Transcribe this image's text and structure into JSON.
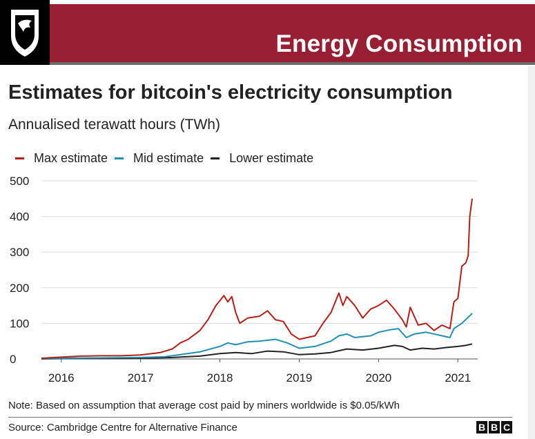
{
  "banner": {
    "title": "Energy Consumption",
    "band_color": "#981e32",
    "logo_icon": "cougar-shield-icon"
  },
  "chart_data": {
    "type": "line",
    "title": "Estimates for bitcoin's electricity consumption",
    "subtitle": "Annualised terawatt hours (TWh)",
    "xlabel": "",
    "ylabel": "",
    "xlim": [
      2015.75,
      2021.25
    ],
    "ylim": [
      0,
      500
    ],
    "x_ticks": [
      "2016",
      "2017",
      "2018",
      "2019",
      "2020",
      "2021"
    ],
    "y_ticks": [
      "500",
      "400",
      "300",
      "200",
      "100",
      "0"
    ],
    "grid": true,
    "legend_position": "top-left",
    "series": [
      {
        "name": "Max estimate",
        "color": "#b61e15",
        "points": [
          [
            2015.75,
            2
          ],
          [
            2016.0,
            5
          ],
          [
            2016.25,
            8
          ],
          [
            2016.5,
            9
          ],
          [
            2016.75,
            9
          ],
          [
            2017.0,
            11
          ],
          [
            2017.25,
            18
          ],
          [
            2017.4,
            28
          ],
          [
            2017.5,
            45
          ],
          [
            2017.6,
            55
          ],
          [
            2017.75,
            80
          ],
          [
            2017.85,
            110
          ],
          [
            2017.95,
            150
          ],
          [
            2018.05,
            178
          ],
          [
            2018.1,
            160
          ],
          [
            2018.15,
            175
          ],
          [
            2018.2,
            130
          ],
          [
            2018.25,
            100
          ],
          [
            2018.35,
            115
          ],
          [
            2018.5,
            120
          ],
          [
            2018.6,
            135
          ],
          [
            2018.7,
            110
          ],
          [
            2018.8,
            105
          ],
          [
            2018.9,
            70
          ],
          [
            2019.0,
            55
          ],
          [
            2019.1,
            60
          ],
          [
            2019.2,
            65
          ],
          [
            2019.3,
            100
          ],
          [
            2019.4,
            130
          ],
          [
            2019.5,
            185
          ],
          [
            2019.55,
            150
          ],
          [
            2019.6,
            175
          ],
          [
            2019.7,
            150
          ],
          [
            2019.8,
            115
          ],
          [
            2019.9,
            140
          ],
          [
            2020.0,
            150
          ],
          [
            2020.1,
            165
          ],
          [
            2020.2,
            140
          ],
          [
            2020.3,
            110
          ],
          [
            2020.35,
            90
          ],
          [
            2020.4,
            145
          ],
          [
            2020.5,
            95
          ],
          [
            2020.6,
            100
          ],
          [
            2020.7,
            80
          ],
          [
            2020.8,
            95
          ],
          [
            2020.9,
            85
          ],
          [
            2020.95,
            160
          ],
          [
            2021.0,
            170
          ],
          [
            2021.05,
            260
          ],
          [
            2021.1,
            270
          ],
          [
            2021.13,
            290
          ],
          [
            2021.15,
            400
          ],
          [
            2021.18,
            450
          ]
        ]
      },
      {
        "name": "Mid estimate",
        "color": "#1e8fb5",
        "points": [
          [
            2015.75,
            1
          ],
          [
            2016.0,
            2
          ],
          [
            2016.5,
            3
          ],
          [
            2017.0,
            4
          ],
          [
            2017.3,
            6
          ],
          [
            2017.5,
            12
          ],
          [
            2017.75,
            20
          ],
          [
            2018.0,
            35
          ],
          [
            2018.1,
            45
          ],
          [
            2018.2,
            40
          ],
          [
            2018.35,
            48
          ],
          [
            2018.5,
            50
          ],
          [
            2018.7,
            55
          ],
          [
            2018.85,
            45
          ],
          [
            2019.0,
            30
          ],
          [
            2019.2,
            35
          ],
          [
            2019.4,
            50
          ],
          [
            2019.5,
            65
          ],
          [
            2019.6,
            70
          ],
          [
            2019.7,
            60
          ],
          [
            2019.9,
            65
          ],
          [
            2020.0,
            75
          ],
          [
            2020.15,
            82
          ],
          [
            2020.25,
            85
          ],
          [
            2020.35,
            60
          ],
          [
            2020.45,
            70
          ],
          [
            2020.6,
            75
          ],
          [
            2020.8,
            65
          ],
          [
            2020.9,
            60
          ],
          [
            2020.95,
            85
          ],
          [
            2021.05,
            100
          ],
          [
            2021.12,
            115
          ],
          [
            2021.18,
            128
          ]
        ]
      },
      {
        "name": "Lower estimate",
        "color": "#222222",
        "points": [
          [
            2015.75,
            0
          ],
          [
            2016.0,
            1
          ],
          [
            2016.5,
            1
          ],
          [
            2017.0,
            2
          ],
          [
            2017.4,
            4
          ],
          [
            2017.75,
            8
          ],
          [
            2018.0,
            15
          ],
          [
            2018.2,
            18
          ],
          [
            2018.4,
            15
          ],
          [
            2018.6,
            22
          ],
          [
            2018.8,
            20
          ],
          [
            2019.0,
            12
          ],
          [
            2019.2,
            14
          ],
          [
            2019.4,
            18
          ],
          [
            2019.6,
            28
          ],
          [
            2019.8,
            25
          ],
          [
            2020.0,
            30
          ],
          [
            2020.2,
            38
          ],
          [
            2020.3,
            35
          ],
          [
            2020.4,
            25
          ],
          [
            2020.55,
            30
          ],
          [
            2020.7,
            28
          ],
          [
            2020.85,
            32
          ],
          [
            2021.0,
            35
          ],
          [
            2021.1,
            38
          ],
          [
            2021.18,
            42
          ]
        ]
      }
    ]
  },
  "note": "Note: Based on assumption that average cost paid by miners worldwide is $0.05/kWh",
  "source": "Source: Cambridge Centre for Alternative Finance",
  "bbc": [
    "B",
    "B",
    "C"
  ]
}
